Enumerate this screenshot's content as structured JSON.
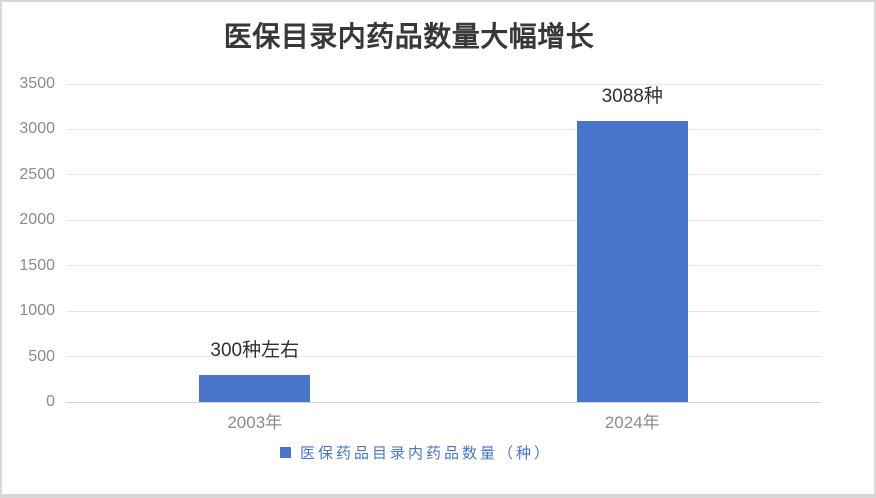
{
  "chart_data": {
    "type": "bar",
    "title": "医保目录内药品数量大幅增长",
    "categories": [
      "2003年",
      "2024年"
    ],
    "series": [
      {
        "name": "医保药品目录内药品数量（种）",
        "values": [
          300,
          3088
        ]
      }
    ],
    "data_labels": [
      "300种左右",
      "3088种"
    ],
    "y_ticks": [
      0,
      500,
      1000,
      1500,
      2000,
      2500,
      3000,
      3500
    ],
    "ylim": [
      0,
      3500
    ],
    "xlabel": "",
    "ylabel": "",
    "grid": true,
    "legend_position": "bottom",
    "legend_label": "医保药品目录内药品数量（种）"
  },
  "colors": {
    "bar": "#4875cb",
    "legend_text": "#4875cb",
    "title_text": "#383838",
    "axis_text": "#8b8b8b",
    "gridline": "#e7e7e7",
    "axis_line": "#d2d2d2",
    "frame_border": "#d8d8d8",
    "background": "#ffffff"
  }
}
